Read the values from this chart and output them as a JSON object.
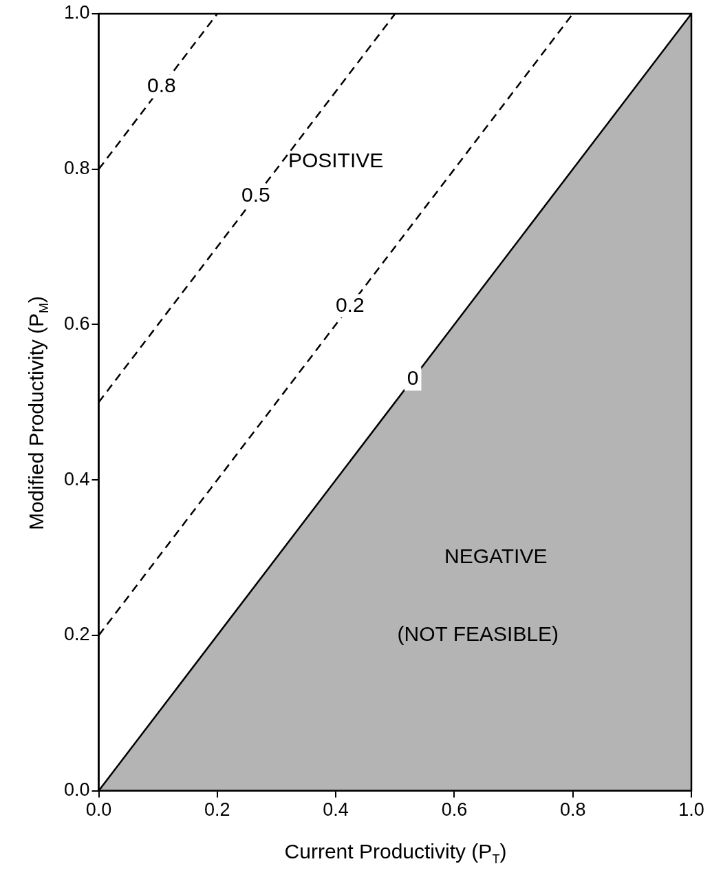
{
  "chart_data": {
    "type": "line",
    "xlabel": "Current Productivity (P$_{T}$)",
    "ylabel": "Modified Productivity (P$_{M}$)",
    "xlim": [
      0,
      1
    ],
    "ylim": [
      0,
      1
    ],
    "xticks": [
      {
        "value": 0,
        "label": "0.0"
      },
      {
        "value": 0.2,
        "label": "0.2"
      },
      {
        "value": 0.4,
        "label": "0.4"
      },
      {
        "value": 0.6,
        "label": "0.6"
      },
      {
        "value": 0.8,
        "label": "0.8"
      },
      {
        "value": 1,
        "label": "1.0"
      }
    ],
    "yticks": [
      {
        "value": 0,
        "label": "0.0"
      },
      {
        "value": 0.2,
        "label": "0.2"
      },
      {
        "value": 0.4,
        "label": "0.4"
      },
      {
        "value": 0.6,
        "label": "0.6"
      },
      {
        "value": 0.8,
        "label": "0.8"
      },
      {
        "value": 1,
        "label": "1.0"
      }
    ],
    "series": [
      {
        "type": "area",
        "name": "0",
        "color": "#b4b4b4",
        "x": [
          0,
          1
        ],
        "values": [
          0,
          1
        ],
        "line_style": "solid"
      },
      {
        "name": "0.8",
        "color": "#000000",
        "x": [
          0,
          0.2
        ],
        "values": [
          0.8,
          1
        ],
        "line_style": "dashed"
      },
      {
        "name": "0.5",
        "color": "#000000",
        "x": [
          0,
          0.5
        ],
        "values": [
          0.5,
          1
        ],
        "line_style": "dashed"
      },
      {
        "name": "0.2",
        "color": "#000000",
        "x": [
          0,
          0.8
        ],
        "values": [
          0.2,
          1
        ],
        "line_style": "dashed"
      }
    ],
    "annotations": [
      "POSITIVE",
      "NEGATIVE",
      "(NOT FEASIBLE)"
    ]
  }
}
